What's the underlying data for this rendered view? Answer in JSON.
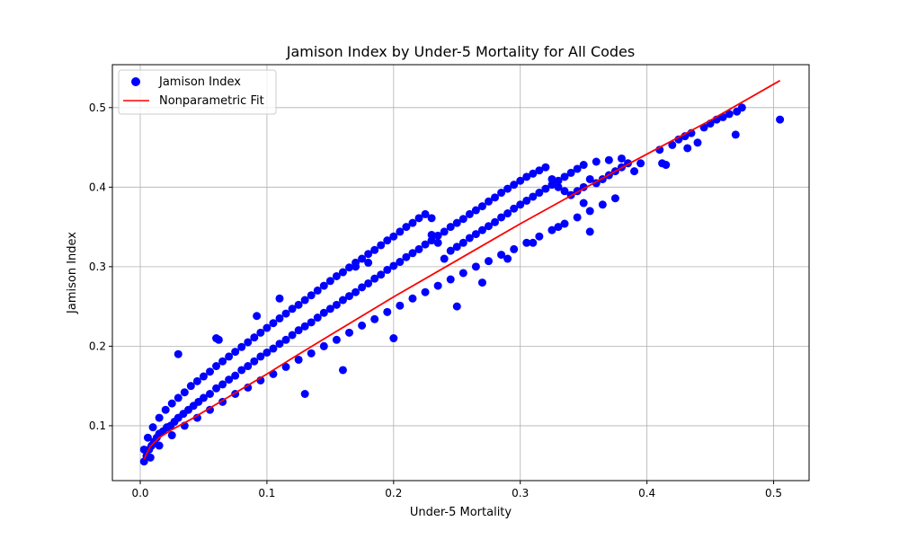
{
  "chart_data": {
    "type": "scatter",
    "title": "Jamison Index by Under-5 Mortality for All Codes",
    "xlabel": "Under-5 Mortality",
    "ylabel": "Jamison Index",
    "xlim": [
      -0.022,
      0.528
    ],
    "ylim": [
      0.031,
      0.554
    ],
    "xticks": [
      0.0,
      0.1,
      0.2,
      0.3,
      0.4,
      0.5
    ],
    "xtick_labels": [
      "0.0",
      "0.1",
      "0.2",
      "0.3",
      "0.4",
      "0.5"
    ],
    "yticks": [
      0.1,
      0.2,
      0.3,
      0.4,
      0.5
    ],
    "ytick_labels": [
      "0.1",
      "0.2",
      "0.3",
      "0.4",
      "0.5"
    ],
    "grid": true,
    "legend_position": "upper-left",
    "series": [
      {
        "name": "Jamison Index",
        "kind": "scatter",
        "color": "#0000ff",
        "x": [
          0.003,
          0.005,
          0.007,
          0.009,
          0.011,
          0.013,
          0.015,
          0.018,
          0.021,
          0.024,
          0.027,
          0.03,
          0.034,
          0.038,
          0.042,
          0.046,
          0.05,
          0.055,
          0.06,
          0.065,
          0.07,
          0.075,
          0.08,
          0.085,
          0.09,
          0.095,
          0.1,
          0.105,
          0.11,
          0.115,
          0.12,
          0.125,
          0.13,
          0.135,
          0.14,
          0.145,
          0.15,
          0.155,
          0.16,
          0.165,
          0.17,
          0.175,
          0.18,
          0.185,
          0.19,
          0.195,
          0.2,
          0.205,
          0.21,
          0.215,
          0.22,
          0.225,
          0.23,
          0.235,
          0.24,
          0.245,
          0.25,
          0.255,
          0.26,
          0.265,
          0.27,
          0.275,
          0.28,
          0.285,
          0.29,
          0.295,
          0.3,
          0.305,
          0.31,
          0.315,
          0.32,
          0.325,
          0.33,
          0.335,
          0.34,
          0.345,
          0.35,
          0.355,
          0.36,
          0.365,
          0.37,
          0.375,
          0.38,
          0.385,
          0.003,
          0.006,
          0.01,
          0.015,
          0.02,
          0.025,
          0.03,
          0.035,
          0.04,
          0.045,
          0.05,
          0.055,
          0.06,
          0.065,
          0.07,
          0.075,
          0.08,
          0.085,
          0.09,
          0.095,
          0.1,
          0.105,
          0.11,
          0.115,
          0.12,
          0.125,
          0.13,
          0.135,
          0.14,
          0.145,
          0.15,
          0.155,
          0.16,
          0.165,
          0.17,
          0.175,
          0.18,
          0.185,
          0.19,
          0.195,
          0.2,
          0.205,
          0.21,
          0.215,
          0.22,
          0.225,
          0.23,
          0.235,
          0.24,
          0.245,
          0.25,
          0.255,
          0.26,
          0.265,
          0.27,
          0.275,
          0.28,
          0.285,
          0.29,
          0.295,
          0.3,
          0.305,
          0.31,
          0.315,
          0.32,
          0.325,
          0.33,
          0.335,
          0.34,
          0.345,
          0.35,
          0.36,
          0.37,
          0.38,
          0.008,
          0.015,
          0.025,
          0.035,
          0.045,
          0.055,
          0.065,
          0.075,
          0.085,
          0.095,
          0.105,
          0.115,
          0.125,
          0.135,
          0.145,
          0.155,
          0.165,
          0.175,
          0.185,
          0.195,
          0.205,
          0.215,
          0.225,
          0.235,
          0.245,
          0.255,
          0.265,
          0.275,
          0.285,
          0.295,
          0.305,
          0.315,
          0.325,
          0.335,
          0.345,
          0.355,
          0.365,
          0.375,
          0.03,
          0.06,
          0.062,
          0.092,
          0.11,
          0.23,
          0.17,
          0.18,
          0.39,
          0.395,
          0.41,
          0.412,
          0.415,
          0.42,
          0.425,
          0.43,
          0.432,
          0.435,
          0.44,
          0.445,
          0.45,
          0.455,
          0.46,
          0.465,
          0.47,
          0.471,
          0.475,
          0.505,
          0.355,
          0.35,
          0.33,
          0.31,
          0.29,
          0.27,
          0.25,
          0.2,
          0.16,
          0.13
        ],
        "y": [
          0.055,
          0.062,
          0.07,
          0.075,
          0.08,
          0.085,
          0.09,
          0.093,
          0.098,
          0.1,
          0.105,
          0.11,
          0.115,
          0.12,
          0.125,
          0.13,
          0.135,
          0.14,
          0.147,
          0.152,
          0.158,
          0.163,
          0.17,
          0.175,
          0.181,
          0.187,
          0.192,
          0.197,
          0.203,
          0.208,
          0.214,
          0.22,
          0.225,
          0.23,
          0.236,
          0.242,
          0.247,
          0.252,
          0.258,
          0.263,
          0.268,
          0.274,
          0.279,
          0.285,
          0.29,
          0.296,
          0.301,
          0.306,
          0.312,
          0.317,
          0.322,
          0.328,
          0.333,
          0.339,
          0.344,
          0.35,
          0.355,
          0.36,
          0.366,
          0.371,
          0.376,
          0.382,
          0.387,
          0.393,
          0.398,
          0.403,
          0.408,
          0.413,
          0.417,
          0.421,
          0.425,
          0.41,
          0.4,
          0.395,
          0.39,
          0.395,
          0.4,
          0.41,
          0.405,
          0.41,
          0.415,
          0.42,
          0.425,
          0.43,
          0.07,
          0.085,
          0.098,
          0.11,
          0.12,
          0.128,
          0.135,
          0.142,
          0.15,
          0.156,
          0.162,
          0.168,
          0.175,
          0.181,
          0.187,
          0.193,
          0.199,
          0.205,
          0.211,
          0.217,
          0.223,
          0.229,
          0.235,
          0.241,
          0.247,
          0.252,
          0.258,
          0.264,
          0.27,
          0.276,
          0.282,
          0.288,
          0.293,
          0.299,
          0.305,
          0.31,
          0.316,
          0.321,
          0.327,
          0.333,
          0.338,
          0.344,
          0.35,
          0.355,
          0.361,
          0.366,
          0.34,
          0.33,
          0.31,
          0.32,
          0.325,
          0.33,
          0.336,
          0.341,
          0.346,
          0.351,
          0.356,
          0.362,
          0.367,
          0.373,
          0.378,
          0.383,
          0.388,
          0.393,
          0.398,
          0.403,
          0.408,
          0.413,
          0.418,
          0.423,
          0.428,
          0.432,
          0.434,
          0.436,
          0.06,
          0.075,
          0.088,
          0.1,
          0.11,
          0.12,
          0.13,
          0.14,
          0.148,
          0.157,
          0.165,
          0.174,
          0.183,
          0.191,
          0.2,
          0.208,
          0.217,
          0.226,
          0.234,
          0.243,
          0.251,
          0.26,
          0.268,
          0.276,
          0.284,
          0.292,
          0.3,
          0.307,
          0.315,
          0.322,
          0.33,
          0.338,
          0.346,
          0.354,
          0.362,
          0.37,
          0.378,
          0.386,
          0.19,
          0.21,
          0.208,
          0.238,
          0.26,
          0.361,
          0.3,
          0.305,
          0.42,
          0.43,
          0.447,
          0.43,
          0.428,
          0.453,
          0.46,
          0.464,
          0.449,
          0.468,
          0.456,
          0.475,
          0.48,
          0.485,
          0.488,
          0.492,
          0.466,
          0.495,
          0.5,
          0.485,
          0.344,
          0.38,
          0.35,
          0.33,
          0.31,
          0.28,
          0.25,
          0.21,
          0.17,
          0.14
        ]
      },
      {
        "name": "Nonparametric Fit",
        "kind": "line",
        "color": "#ff0000",
        "x": [
          0.003,
          0.008,
          0.015,
          0.025,
          0.04,
          0.06,
          0.08,
          0.1,
          0.12,
          0.15,
          0.2,
          0.25,
          0.3,
          0.35,
          0.39,
          0.45,
          0.505
        ],
        "y": [
          0.058,
          0.074,
          0.085,
          0.095,
          0.108,
          0.127,
          0.146,
          0.165,
          0.185,
          0.214,
          0.262,
          0.308,
          0.354,
          0.398,
          0.433,
          0.484,
          0.534
        ]
      }
    ]
  }
}
